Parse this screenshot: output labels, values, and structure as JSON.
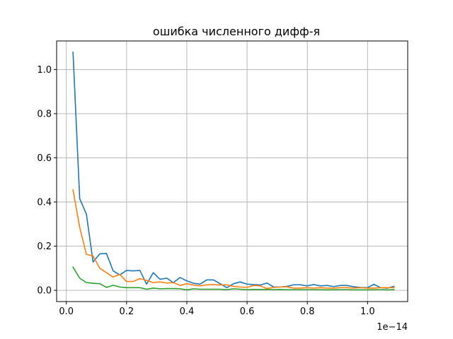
{
  "chart_data": {
    "type": "line",
    "title": "ошибка численного дифф-я",
    "xlabel": "",
    "ylabel": "",
    "x_offset_label": "1e−14",
    "xlim": [
      -0.0322,
      1.1332
    ],
    "ylim": [
      -0.051,
      1.1293
    ],
    "xticks": [
      0.0,
      0.2,
      0.4,
      0.6,
      0.8,
      1.0
    ],
    "xtick_labels": [
      "0.0",
      "0.2",
      "0.4",
      "0.6",
      "0.8",
      "1.0"
    ],
    "yticks": [
      0.0,
      0.2,
      0.4,
      0.6,
      0.8,
      1.0
    ],
    "ytick_labels": [
      "0.0",
      "0.2",
      "0.4",
      "0.6",
      "0.8",
      "1.0"
    ],
    "grid": true,
    "x": [
      0.0222,
      0.0444,
      0.0666,
      0.0888,
      0.111,
      0.1332,
      0.1554,
      0.1776,
      0.1998,
      0.222,
      0.2442,
      0.2664,
      0.2886,
      0.3108,
      0.333,
      0.3552,
      0.3774,
      0.3996,
      0.4218,
      0.444,
      0.4662,
      0.4884,
      0.5106,
      0.5328,
      0.555,
      0.5772,
      0.5994,
      0.6216,
      0.6438,
      0.666,
      0.6882,
      0.7104,
      0.7326,
      0.7548,
      0.777,
      0.7992,
      0.8214,
      0.8436,
      0.8658,
      0.888,
      0.9102,
      0.9324,
      0.9546,
      0.9768,
      0.999,
      1.0212,
      1.0434,
      1.0656,
      1.0878
    ],
    "series": [
      {
        "color": "#1f77b4",
        "values": [
          1.078,
          0.415,
          0.345,
          0.128,
          0.165,
          0.167,
          0.088,
          0.07,
          0.09,
          0.088,
          0.09,
          0.028,
          0.08,
          0.05,
          0.055,
          0.035,
          0.058,
          0.043,
          0.032,
          0.028,
          0.047,
          0.047,
          0.03,
          0.012,
          0.03,
          0.038,
          0.028,
          0.026,
          0.024,
          0.033,
          0.015,
          0.015,
          0.018,
          0.025,
          0.025,
          0.02,
          0.026,
          0.02,
          0.022,
          0.017,
          0.022,
          0.022,
          0.016,
          0.013,
          0.012,
          0.027,
          0.012,
          0.01,
          0.018
        ]
      },
      {
        "color": "#ff7f0e",
        "values": [
          0.455,
          0.285,
          0.163,
          0.155,
          0.1,
          0.08,
          0.06,
          0.072,
          0.04,
          0.04,
          0.053,
          0.045,
          0.035,
          0.038,
          0.033,
          0.035,
          0.022,
          0.03,
          0.024,
          0.02,
          0.025,
          0.026,
          0.024,
          0.025,
          0.018,
          0.015,
          0.013,
          0.022,
          0.02,
          0.008,
          0.013,
          0.015,
          0.016,
          0.01,
          0.01,
          0.012,
          0.01,
          0.012,
          0.01,
          0.01,
          0.012,
          0.012,
          0.01,
          0.012,
          0.01,
          0.01,
          0.012,
          0.012,
          0.012
        ]
      },
      {
        "color": "#2ca02c",
        "values": [
          0.105,
          0.055,
          0.035,
          0.032,
          0.03,
          0.013,
          0.023,
          0.015,
          0.012,
          0.012,
          0.012,
          0.005,
          0.01,
          0.007,
          0.008,
          0.008,
          0.007,
          0.002,
          0.007,
          0.005,
          0.005,
          0.005,
          0.005,
          0.003,
          0.007,
          0.005,
          0.003,
          0.004,
          0.004,
          0.004,
          0.003,
          0.004,
          0.003,
          0.003,
          0.003,
          0.003,
          0.003,
          0.003,
          0.002,
          0.003,
          0.003,
          0.003,
          0.002,
          0.002,
          0.002,
          0.003,
          0.003,
          0.002,
          0.003
        ]
      }
    ]
  }
}
